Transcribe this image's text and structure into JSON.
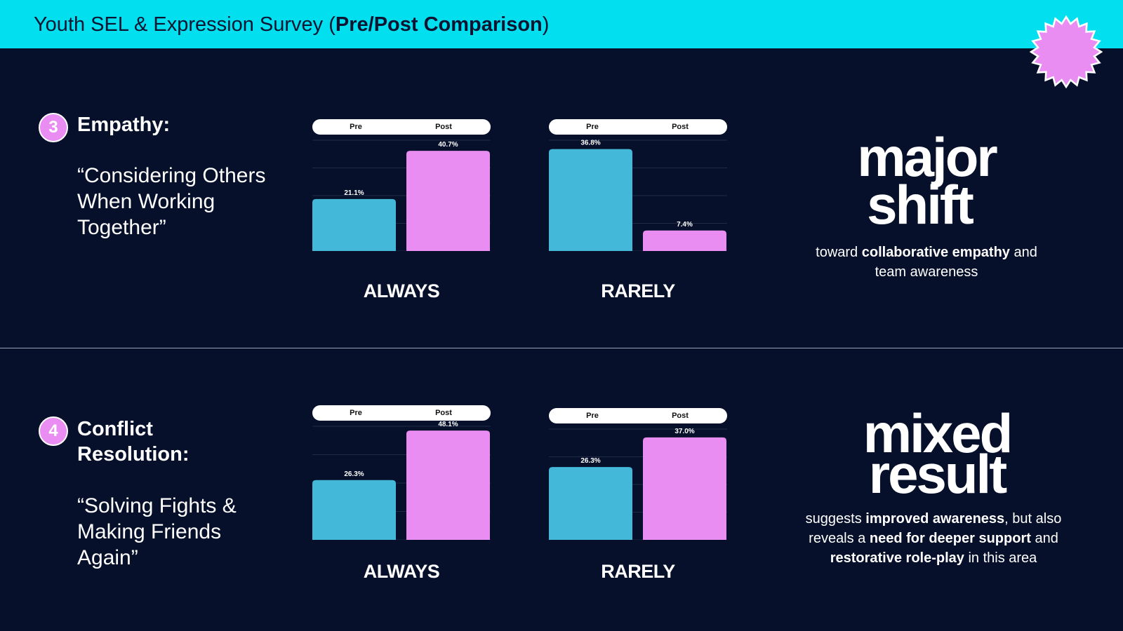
{
  "header": {
    "title_plain": "Youth SEL & Expression Survey (",
    "title_bold": "Pre/Post Comparison",
    "title_close": ")"
  },
  "colors": {
    "header_bg": "#02dfee",
    "pre": "#43b8d8",
    "post": "#e98df2",
    "background": "#06102a"
  },
  "sections": [
    {
      "number": "3",
      "title": "Empathy:",
      "quote": "“Considering Others When Working Together”",
      "headline_line1": "major",
      "headline_line2": "shift",
      "caption_parts": [
        {
          "text": "toward ",
          "bold": false
        },
        {
          "text": "collaborative empathy",
          "bold": true
        },
        {
          "text": " and team awareness",
          "bold": false
        }
      ]
    },
    {
      "number": "4",
      "title": "Conflict Resolution:",
      "quote": "“Solving Fights & Making Friends Again”",
      "headline_line1": "mixed",
      "headline_line2": "result",
      "caption_parts": [
        {
          "text": "suggests ",
          "bold": false
        },
        {
          "text": "improved awareness",
          "bold": true
        },
        {
          "text": ", but also reveals a ",
          "bold": false
        },
        {
          "text": "need for deeper support",
          "bold": true
        },
        {
          "text": " and ",
          "bold": false
        },
        {
          "text": "restorative role-play",
          "bold": true
        },
        {
          "text": " in this area",
          "bold": false
        }
      ]
    }
  ],
  "chart_data": [
    {
      "type": "bar",
      "title": "ALWAYS",
      "categories": [
        "Pre",
        "Post"
      ],
      "values": [
        21.1,
        40.7
      ],
      "labels": [
        "21.1%",
        "40.7%"
      ],
      "ylim": [
        0,
        45
      ],
      "legend": [
        "Pre",
        "Post"
      ]
    },
    {
      "type": "bar",
      "title": "RARELY",
      "categories": [
        "Pre",
        "Post"
      ],
      "values": [
        36.8,
        7.4
      ],
      "labels": [
        "36.8%",
        "7.4%"
      ],
      "ylim": [
        0,
        40
      ],
      "legend": [
        "Pre",
        "Post"
      ]
    },
    {
      "type": "bar",
      "title": "ALWAYS",
      "categories": [
        "Pre",
        "Post"
      ],
      "values": [
        26.3,
        48.1
      ],
      "labels": [
        "26.3%",
        "48.1%"
      ],
      "ylim": [
        0,
        50
      ],
      "legend": [
        "Pre",
        "Post"
      ]
    },
    {
      "type": "bar",
      "title": "RARELY",
      "categories": [
        "Pre",
        "Post"
      ],
      "values": [
        26.3,
        37.0
      ],
      "labels": [
        "26.3%",
        "37.0%"
      ],
      "ylim": [
        0,
        40
      ],
      "legend": [
        "Pre",
        "Post"
      ]
    }
  ]
}
